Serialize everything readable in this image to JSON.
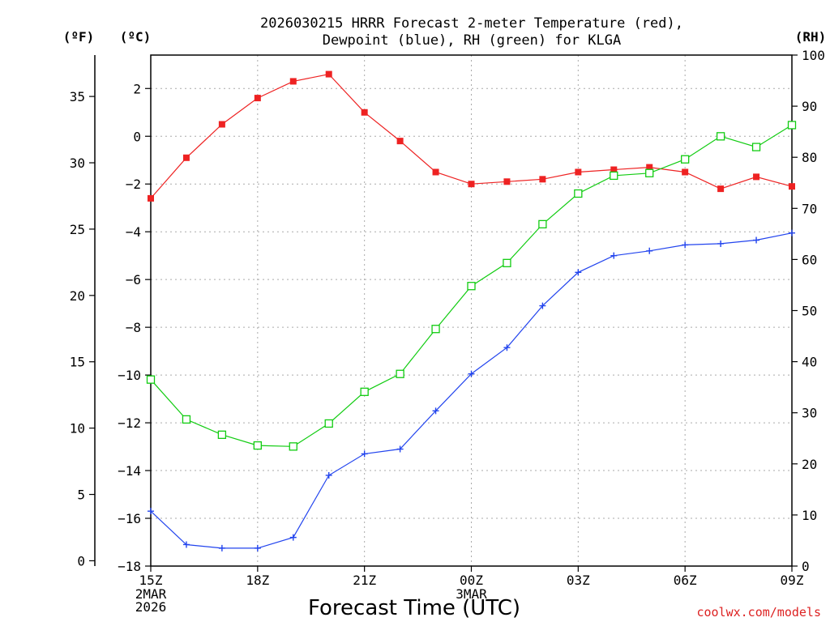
{
  "chart_data": {
    "type": "line",
    "title_line1": "2026030215 HRRR Forecast 2-meter Temperature (red),",
    "title_line2": "Dewpoint (blue), RH (green) for KLGA",
    "xlabel": "Forecast Time (UTC)",
    "credit": "coolwx.com/models",
    "unit_labels": {
      "fahrenheit": "(ºF)",
      "celsius": "(ºC)",
      "rh": "(RH)"
    },
    "x_range_hours": [
      0,
      18
    ],
    "x_ticks": [
      {
        "h": 0,
        "label": "15Z"
      },
      {
        "h": 3,
        "label": "18Z"
      },
      {
        "h": 6,
        "label": "21Z"
      },
      {
        "h": 9,
        "label": "00Z"
      },
      {
        "h": 12,
        "label": "03Z"
      },
      {
        "h": 15,
        "label": "06Z"
      },
      {
        "h": 18,
        "label": "09Z"
      }
    ],
    "date_labels": [
      {
        "h": 0,
        "lines": [
          "2MAR",
          "2026"
        ]
      },
      {
        "h": 9,
        "lines": [
          "3MAR"
        ]
      }
    ],
    "celsius_axis": {
      "min": -18,
      "max": 3.4,
      "ticks": [
        2,
        0,
        -2,
        -4,
        -6,
        -8,
        -10,
        -12,
        -14,
        -16,
        -18
      ]
    },
    "fahrenheit_axis": {
      "ticks": [
        35,
        30,
        25,
        20,
        15,
        10,
        5,
        0
      ]
    },
    "rh_axis": {
      "min": 0,
      "max": 100,
      "ticks": [
        100,
        90,
        80,
        70,
        60,
        50,
        40,
        30,
        20,
        10,
        0
      ]
    },
    "colors": {
      "temperature": "#ee2222",
      "dewpoint": "#2244ee",
      "rh": "#11cc11"
    },
    "series": [
      {
        "name": "Temperature",
        "units": "C",
        "axis": "celsius",
        "marker": "filled-square",
        "color_key": "temperature",
        "values": [
          -2.6,
          -0.9,
          0.5,
          1.6,
          2.3,
          2.6,
          1.0,
          -0.2,
          -1.5,
          -2.0,
          -1.9,
          -1.8,
          -1.5,
          -1.4,
          -1.3,
          -1.5,
          -2.2,
          -1.7,
          -2.1
        ]
      },
      {
        "name": "Dewpoint",
        "units": "C",
        "axis": "celsius",
        "marker": "plus",
        "color_key": "dewpoint",
        "values": [
          -15.7,
          -17.1,
          -17.25,
          -17.25,
          -16.8,
          -14.2,
          -13.3,
          -13.1,
          -11.5,
          -9.95,
          -8.85,
          -7.1,
          -5.7,
          -5.0,
          -4.8,
          -4.55,
          -4.5,
          -4.35,
          -4.05
        ]
      },
      {
        "name": "Relative Humidity",
        "units": "%",
        "axis": "rh",
        "marker": "open-square",
        "color_key": "rh",
        "values": [
          36.5,
          28.7,
          25.7,
          23.6,
          23.4,
          27.9,
          34.1,
          37.6,
          46.4,
          54.8,
          59.3,
          66.9,
          72.9,
          76.4,
          76.9,
          79.6,
          84.1,
          82.0,
          86.3
        ]
      }
    ]
  }
}
